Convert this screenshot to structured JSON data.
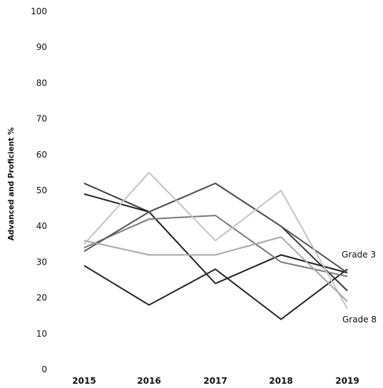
{
  "chart_data": {
    "type": "line",
    "title": "",
    "xlabel": "",
    "ylabel": "Advanced and Proficient %",
    "ylim": [
      0,
      100
    ],
    "yticks": [
      0,
      10,
      20,
      30,
      40,
      50,
      60,
      70,
      80,
      90,
      100
    ],
    "categories": [
      "2015",
      "2016",
      "2017",
      "2018",
      "2019"
    ],
    "grid": false,
    "legend": "none",
    "series": [
      {
        "values": [
          52,
          44,
          52,
          40,
          22
        ],
        "color": "#3a3a3a"
      },
      {
        "values": [
          49,
          44,
          24,
          32,
          27
        ],
        "color": "#1f1f1f"
      },
      {
        "values": [
          29,
          18,
          28,
          14,
          28
        ],
        "color": "#262626"
      },
      {
        "values": [
          34,
          42,
          43,
          30,
          26
        ],
        "color": "#7a7a7a"
      },
      {
        "values": [
          33,
          44,
          52,
          40,
          27
        ],
        "color": "#555555"
      },
      {
        "values": [
          35,
          55,
          36,
          50,
          17
        ],
        "color": "#c4c4c4"
      },
      {
        "values": [
          36,
          32,
          32,
          37,
          19
        ],
        "color": "#a8a8a8"
      }
    ],
    "annotations": [
      {
        "text": "Grade 3"
      },
      {
        "text": "Grade 8"
      }
    ]
  }
}
